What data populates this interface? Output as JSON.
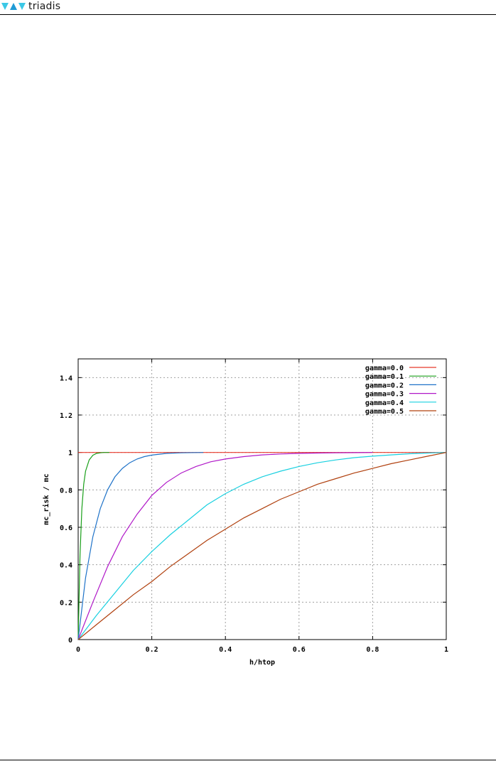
{
  "header": {
    "logo_text": "triadis",
    "logo_colors": [
      "#3cc8e6",
      "#1f9bd6",
      "#3cc8e6"
    ],
    "logo_icons": [
      "triangle-down-icon",
      "triangle-up-icon",
      "triangle-down-icon"
    ]
  },
  "chart_data": {
    "type": "line",
    "title": "",
    "xlabel": "h/htop",
    "ylabel": "mc_risk / mc",
    "xlim": [
      0,
      1
    ],
    "ylim": [
      0,
      1.5
    ],
    "xticks": [
      "0",
      "0.2",
      "0.4",
      "0.6",
      "0.8",
      "1"
    ],
    "yticks": [
      "0",
      "0.2",
      "0.4",
      "0.6",
      "0.8",
      "1",
      "1.2",
      "1.4"
    ],
    "grid": true,
    "legend_position": "top-right",
    "series": [
      {
        "name": "gamma=0.0",
        "color": "#e8392a",
        "x": [
          0,
          1
        ],
        "y": [
          1,
          1
        ]
      },
      {
        "name": "gamma=0.1",
        "color": "#1aa01a",
        "x": [
          0,
          0.005,
          0.01,
          0.015,
          0.02,
          0.03,
          0.04,
          0.05,
          0.06,
          0.07,
          0.085
        ],
        "y": [
          0,
          0.45,
          0.7,
          0.83,
          0.9,
          0.96,
          0.985,
          0.995,
          0.998,
          1.0,
          1.0
        ]
      },
      {
        "name": "gamma=0.2",
        "color": "#1e72c8",
        "x": [
          0,
          0.02,
          0.04,
          0.06,
          0.08,
          0.1,
          0.12,
          0.14,
          0.16,
          0.18,
          0.2,
          0.24,
          0.28,
          0.34
        ],
        "y": [
          0,
          0.33,
          0.55,
          0.7,
          0.8,
          0.87,
          0.915,
          0.945,
          0.965,
          0.978,
          0.986,
          0.995,
          0.998,
          1.0
        ]
      },
      {
        "name": "gamma=0.3",
        "color": "#b018c8",
        "x": [
          0,
          0.04,
          0.08,
          0.12,
          0.16,
          0.2,
          0.24,
          0.28,
          0.32,
          0.36,
          0.4,
          0.45,
          0.5,
          0.55,
          0.6,
          0.65,
          0.7,
          0.8
        ],
        "y": [
          0,
          0.2,
          0.39,
          0.55,
          0.67,
          0.77,
          0.84,
          0.89,
          0.925,
          0.95,
          0.965,
          0.978,
          0.987,
          0.992,
          0.995,
          0.997,
          0.998,
          1.0
        ]
      },
      {
        "name": "gamma=0.4",
        "color": "#18d0e0",
        "x": [
          0,
          0.05,
          0.1,
          0.15,
          0.2,
          0.25,
          0.3,
          0.35,
          0.4,
          0.45,
          0.5,
          0.55,
          0.6,
          0.65,
          0.7,
          0.75,
          0.8,
          0.85,
          0.9,
          0.95,
          1.0
        ],
        "y": [
          0,
          0.13,
          0.25,
          0.37,
          0.47,
          0.56,
          0.64,
          0.72,
          0.78,
          0.83,
          0.87,
          0.9,
          0.925,
          0.945,
          0.96,
          0.972,
          0.98,
          0.987,
          0.993,
          0.997,
          1.0
        ]
      },
      {
        "name": "gamma=0.5",
        "color": "#b0400e",
        "x": [
          0,
          0.05,
          0.1,
          0.15,
          0.2,
          0.25,
          0.3,
          0.35,
          0.4,
          0.45,
          0.5,
          0.55,
          0.6,
          0.65,
          0.7,
          0.75,
          0.8,
          0.85,
          0.9,
          0.95,
          1.0
        ],
        "y": [
          0,
          0.08,
          0.16,
          0.24,
          0.31,
          0.39,
          0.46,
          0.53,
          0.59,
          0.65,
          0.7,
          0.75,
          0.79,
          0.83,
          0.86,
          0.89,
          0.915,
          0.94,
          0.96,
          0.98,
          1.0
        ]
      }
    ]
  }
}
